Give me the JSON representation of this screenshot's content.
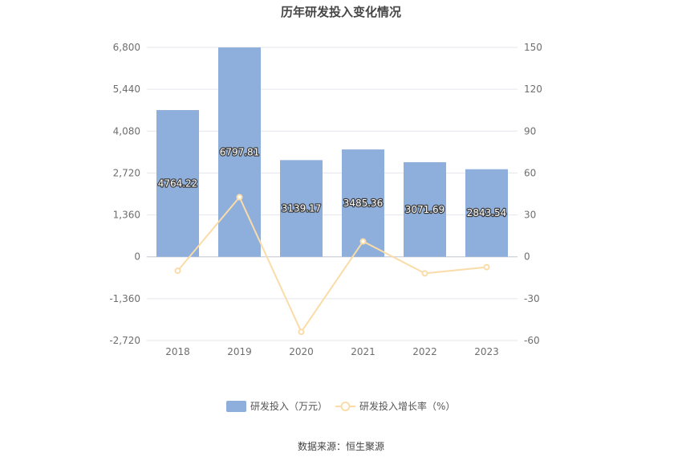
{
  "chart_data": {
    "type": "bar",
    "title": "历年研发投入变化情况",
    "categories": [
      "2018",
      "2019",
      "2020",
      "2021",
      "2022",
      "2023"
    ],
    "series": [
      {
        "name": "研发投入（万元）",
        "type": "bar",
        "axis": "left",
        "color": "#8eaedb",
        "values": [
          4764.22,
          6797.81,
          3139.17,
          3485.36,
          3071.69,
          2843.54
        ],
        "labels": [
          "4764.22",
          "6797.81",
          "3139.17",
          "3485.36",
          "3071.69",
          "2843.54"
        ]
      },
      {
        "name": "研发投入增长率（%）",
        "type": "line",
        "axis": "right",
        "color": "#f9dca7",
        "values": [
          -10.0,
          42.7,
          -53.8,
          11.0,
          -11.9,
          -7.4
        ]
      }
    ],
    "y_left": {
      "min": -2720,
      "max": 6800,
      "ticks": [
        "-2,720",
        "-1,360",
        "0",
        "1,360",
        "2,720",
        "4,080",
        "5,440",
        "6,800"
      ]
    },
    "y_right": {
      "min": -60,
      "max": 150,
      "ticks": [
        "-60",
        "-30",
        "0",
        "30",
        "60",
        "90",
        "120",
        "150"
      ]
    },
    "legend_position": "bottom",
    "grid": true
  },
  "footer": {
    "source": "数据来源：恒生聚源"
  }
}
